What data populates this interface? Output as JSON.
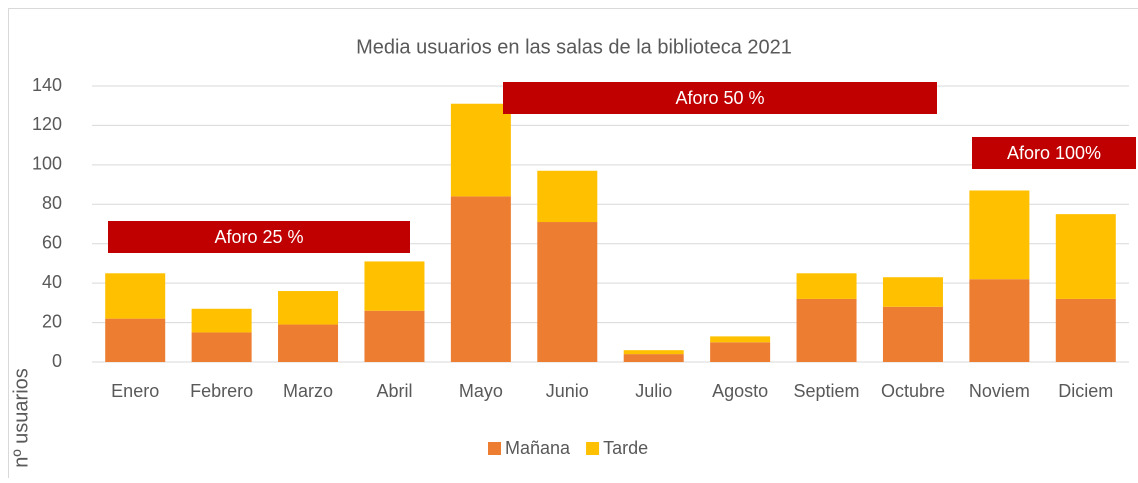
{
  "chart_data": {
    "type": "stacked_bar",
    "title": "Media usuarios en las salas de la biblioteca 2021",
    "y_label": "nº usuarios",
    "categories": [
      "Enero",
      "Febrero",
      "Marzo",
      "Abril",
      "Mayo",
      "Junio",
      "Julio",
      "Agosto",
      "Septiem",
      "Octubre",
      "Noviem",
      "Diciem"
    ],
    "series": [
      {
        "name": "Mañana",
        "color": "#ed7d31",
        "values": [
          22,
          15,
          19,
          26,
          84,
          71,
          4,
          10,
          32,
          28,
          42,
          32
        ]
      },
      {
        "name": "Tarde",
        "color": "#ffc000",
        "values": [
          23,
          12,
          17,
          25,
          47,
          26,
          2,
          3,
          13,
          15,
          45,
          43
        ]
      }
    ],
    "ylim": [
      0,
      140
    ],
    "yticks": [
      0,
      20,
      40,
      60,
      80,
      100,
      120,
      140
    ],
    "grid": true,
    "annotations": [
      "Aforo 25 %",
      "Aforo 50 %",
      "Aforo 100%"
    ]
  }
}
